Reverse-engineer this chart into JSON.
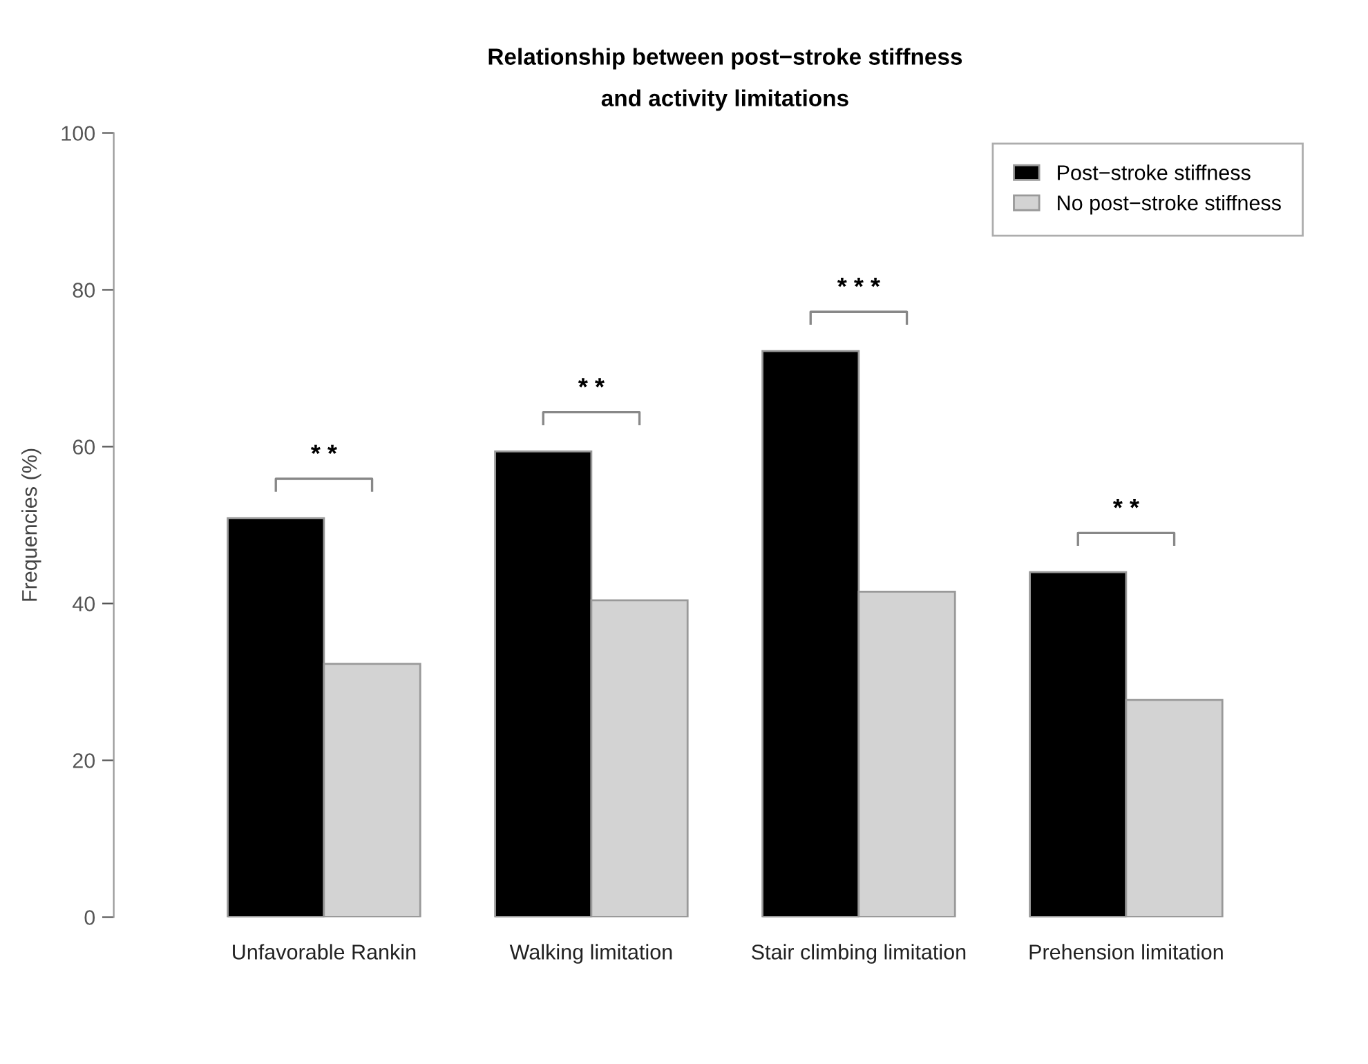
{
  "chart_data": {
    "type": "bar",
    "title": "Relationship between post−stroke stiffness\nand activity limitations",
    "ylabel": "Frequencies (%)",
    "categories": [
      "Unfavorable Rankin",
      "Walking limitation",
      "Stair climbing limitation",
      "Prehension limitation"
    ],
    "series": [
      {
        "name": "Post−stroke stiffness",
        "color": "#000000",
        "values": [
          50.9,
          59.4,
          72.2,
          44.0
        ]
      },
      {
        "name": "No post−stroke stiffness",
        "color": "#d3d3d3",
        "values": [
          32.3,
          40.4,
          41.5,
          27.7
        ]
      }
    ],
    "ylim": [
      0,
      100
    ],
    "yticks": [
      0,
      20,
      40,
      60,
      80,
      100
    ],
    "grid": false,
    "legend": "top right",
    "annotations": [
      "* *",
      "* *",
      "* * *",
      "* *"
    ]
  }
}
